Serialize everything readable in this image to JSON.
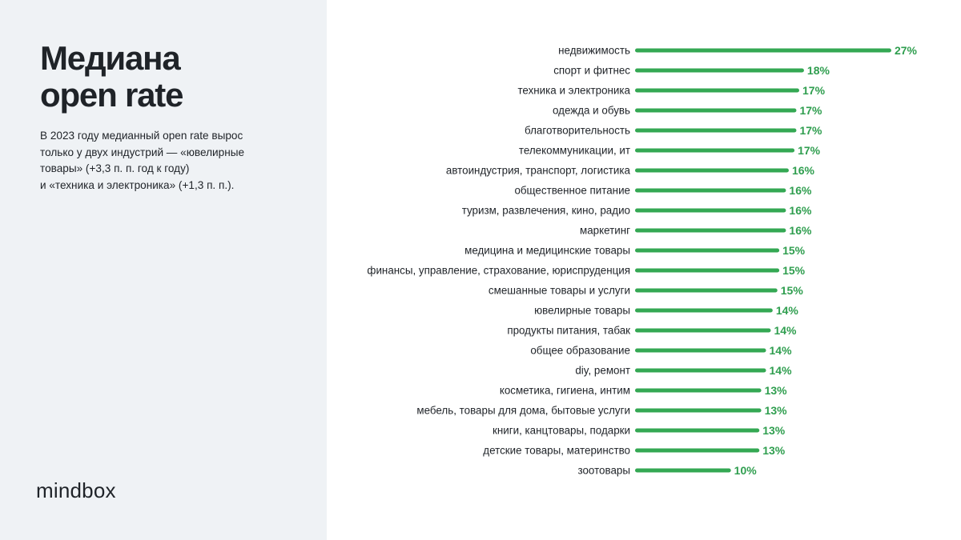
{
  "title_lines": [
    "Медиана",
    "open rate"
  ],
  "description_lines": [
    "В 2023 году медианный open rate вырос",
    "только у двух индустрий — «ювелирные",
    "товары» (+3,3 п. п. год к году)",
    "и «техника и электроника» (+1,3 п. п.)."
  ],
  "brand": "mindbox",
  "colors": {
    "bar": "#34a853",
    "value_label": "#2f9e4f",
    "panel": "#eff2f5",
    "text": "#1f2328"
  },
  "chart_data": {
    "type": "bar",
    "orientation": "horizontal",
    "value_suffix": "%",
    "categories": [
      "недвижимость",
      "спорт и фитнес",
      "техника и электроника",
      "одежда и обувь",
      "благотворительность",
      "телекоммуникации, ит",
      "автоиндустрия, транспорт, логистика",
      "общественное питание",
      "туризм, развлечения, кино, радио",
      "маркетинг",
      "медицина и медицинские товары",
      "финансы, управление, страхование, юриспруденция",
      "смешанные товары и услуги",
      "ювелирные товары",
      "продукты питания, табак",
      "общее образование",
      "diy, ремонт",
      "косметика, гигиена, интим",
      "мебель, товары для дома, бытовые услуги",
      "книги, канцтовары, подарки",
      "детские товары, материнство",
      "зоотовары"
    ],
    "values": [
      27,
      18,
      17,
      17,
      17,
      17,
      16,
      16,
      16,
      16,
      15,
      15,
      15,
      14,
      14,
      14,
      14,
      13,
      13,
      13,
      13,
      10
    ],
    "labels": [
      "27%",
      "18%",
      "17%",
      "17%",
      "17%",
      "17%",
      "16%",
      "16%",
      "16%",
      "16%",
      "15%",
      "15%",
      "15%",
      "14%",
      "14%",
      "14%",
      "14%",
      "13%",
      "13%",
      "13%",
      "13%",
      "10%"
    ],
    "bar_lengths": [
      27.0,
      17.8,
      17.3,
      17.0,
      17.0,
      16.8,
      16.2,
      15.9,
      15.9,
      15.9,
      15.2,
      15.2,
      15.0,
      14.5,
      14.3,
      13.8,
      13.8,
      13.3,
      13.3,
      13.1,
      13.1,
      10.1
    ]
  }
}
